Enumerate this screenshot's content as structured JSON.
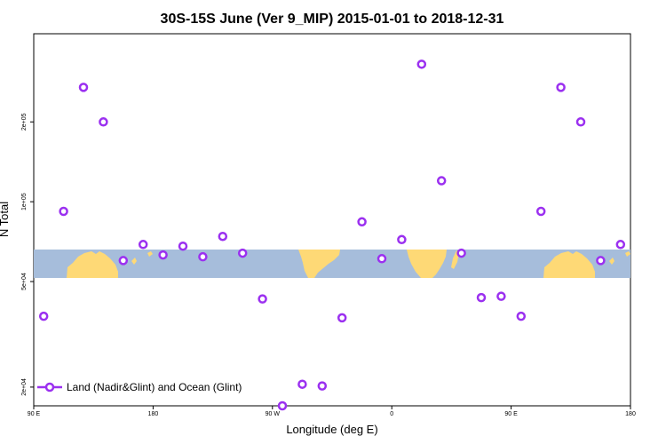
{
  "chart_data": {
    "type": "scatter",
    "title": "30S-15S June (Ver 9_MIP)   2015-01-01 to 2018-12-31",
    "xlabel": "Longitude (deg E)",
    "ylabel": "N Total",
    "x_ticks": [
      90,
      180,
      270,
      360,
      450,
      540
    ],
    "x_tick_labels": [
      "90 E",
      "180",
      "90 W",
      "0",
      "90 E",
      "180"
    ],
    "xlim": [
      90,
      540
    ],
    "y_scale": "log",
    "ylim": [
      17000,
      430000
    ],
    "y_ticks": [
      20000,
      50000,
      100000,
      200000
    ],
    "y_tick_labels": [
      "2e+04",
      "5e+04",
      "1e+05",
      "2e+05"
    ],
    "series": [
      {
        "name": "Land (Nadir&Glint) and Ocean (Glint)",
        "color": "#9B30F0",
        "marker": "open-circle",
        "points": [
          {
            "x": 97.5,
            "y": 37000
          },
          {
            "x": 112.5,
            "y": 92000
          },
          {
            "x": 127.5,
            "y": 270000
          },
          {
            "x": 142.5,
            "y": 200000
          },
          {
            "x": 157.5,
            "y": 60000
          },
          {
            "x": 172.5,
            "y": 69000
          },
          {
            "x": 187.5,
            "y": 63000
          },
          {
            "x": 202.5,
            "y": 68000
          },
          {
            "x": 217.5,
            "y": 62000
          },
          {
            "x": 232.5,
            "y": 74000
          },
          {
            "x": 247.5,
            "y": 64000
          },
          {
            "x": 262.5,
            "y": 43000
          },
          {
            "x": 277.5,
            "y": 17000
          },
          {
            "x": 292.5,
            "y": 20500
          },
          {
            "x": 307.5,
            "y": 20200
          },
          {
            "x": 322.5,
            "y": 36500
          },
          {
            "x": 337.5,
            "y": 84000
          },
          {
            "x": 352.5,
            "y": 61000
          },
          {
            "x": 367.5,
            "y": 72000
          },
          {
            "x": 382.5,
            "y": 330000
          },
          {
            "x": 397.5,
            "y": 120000
          },
          {
            "x": 412.5,
            "y": 64000
          },
          {
            "x": 427.5,
            "y": 43500
          },
          {
            "x": 442.5,
            "y": 44000
          },
          {
            "x": 457.5,
            "y": 37000
          },
          {
            "x": 472.5,
            "y": 92000
          },
          {
            "x": 487.5,
            "y": 270000
          },
          {
            "x": 502.5,
            "y": 200000
          },
          {
            "x": 517.5,
            "y": 60000
          },
          {
            "x": 532.5,
            "y": 69000
          }
        ]
      }
    ],
    "legend": {
      "position": "bottom-left"
    },
    "background_map": {
      "lat_range": [
        -30,
        -15
      ],
      "ocean_color": "#A6BDDB",
      "land_color": "#FED976"
    },
    "grid": false
  }
}
